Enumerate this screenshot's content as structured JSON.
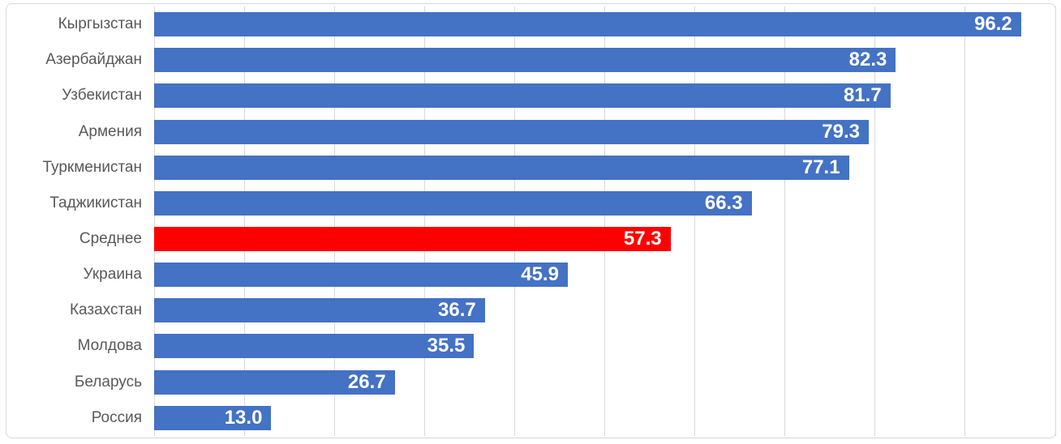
{
  "chart": {
    "colors": {
      "bar": "#4472C4",
      "highlight_bar": "#FF0000",
      "gridline": "#D9D9D9",
      "frame_border": "#D9D9D9",
      "category_label": "#595959",
      "value_label": "#FFFFFF",
      "background": "#FFFFFF"
    }
  },
  "chart_data": {
    "type": "bar",
    "orientation": "horizontal",
    "title": "",
    "xlabel": "",
    "ylabel": "",
    "categories": [
      "Кыргызстан",
      "Азербайджан",
      "Узбекистан",
      "Армения",
      "Туркменистан",
      "Таджикистан",
      "Среднее",
      "Украина",
      "Казахстан",
      "Молдова",
      "Беларусь",
      "Россия"
    ],
    "values": [
      96.2,
      82.3,
      81.7,
      79.3,
      77.1,
      66.3,
      57.3,
      45.9,
      36.7,
      35.5,
      26.7,
      13.0
    ],
    "value_labels": [
      "96.2",
      "82.3",
      "81.7",
      "79.3",
      "77.1",
      "66.3",
      "57.3",
      "45.9",
      "36.7",
      "35.5",
      "26.7",
      "13.0"
    ],
    "highlighted_category": "Среднее",
    "highlight_index": 6,
    "xlim": [
      0,
      100
    ],
    "gridline_interval": 10,
    "grid": true,
    "legend": false,
    "axis_tick_labels": false,
    "data_labels": "inside-end"
  }
}
